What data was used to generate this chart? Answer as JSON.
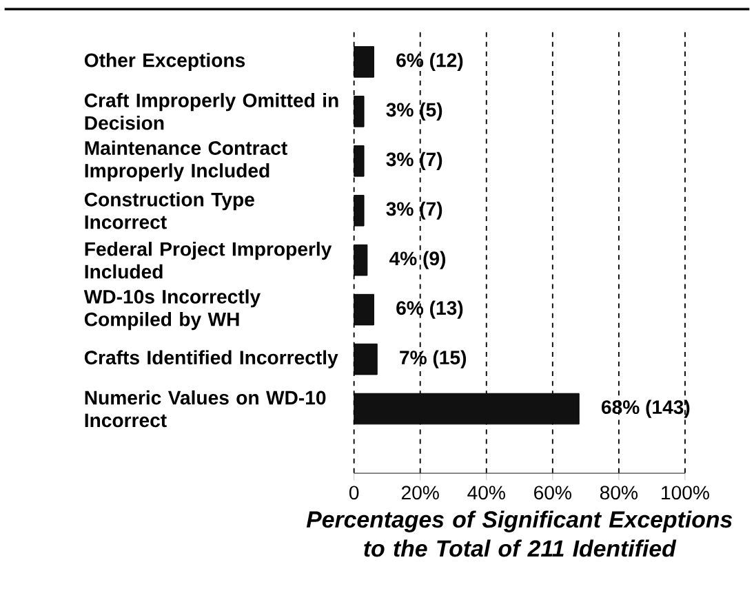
{
  "chart_data": {
    "type": "bar",
    "orientation": "horizontal",
    "xlabel": "Percentages of Significant Exceptions to the Total of 211 Identified",
    "categories": [
      "Other Exceptions",
      "Craft Improperly Omitted in Decision",
      "Maintenance Contract Improperly Included",
      "Construction Type Incorrect",
      "Federal Project Improperly Included",
      "WD-10s Incorrectly Compiled by WH",
      "Crafts Identified Incorrectly",
      "Numeric Values on WD-10 Incorrect"
    ],
    "values": [
      6,
      3,
      3,
      3,
      4,
      6,
      7,
      68
    ],
    "value_labels": [
      "6% (12)",
      "3% (5)",
      "3% (7)",
      "3% (7)",
      "4% (9)",
      "6% (13)",
      "7% (15)",
      "68% (143)"
    ],
    "color": "#111111",
    "xlim": [
      0,
      100
    ],
    "xticks": [
      {
        "value": 0,
        "label": "0"
      },
      {
        "value": 20,
        "label": "20%"
      },
      {
        "value": 40,
        "label": "40%"
      },
      {
        "value": 60,
        "label": "60%"
      },
      {
        "value": 80,
        "label": "80%"
      },
      {
        "value": 100,
        "label": "100%"
      }
    ],
    "grid": "x"
  }
}
